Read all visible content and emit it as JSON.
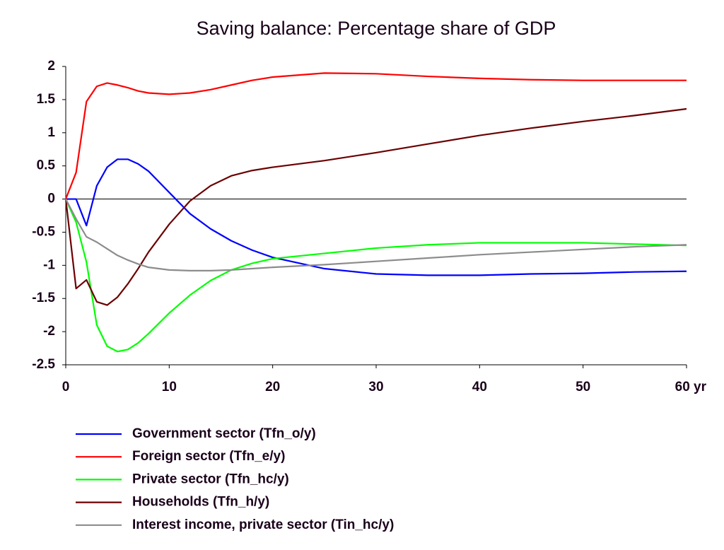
{
  "chart_data": {
    "type": "line",
    "title": "Saving balance: Percentage share of GDP",
    "x": [
      0,
      1,
      2,
      3,
      4,
      5,
      6,
      7,
      8,
      10,
      12,
      14,
      16,
      18,
      20,
      25,
      30,
      35,
      40,
      45,
      50,
      55,
      60
    ],
    "series": [
      {
        "name": "Government sector (Tfn_o/y)",
        "color": "#0000ff",
        "values": [
          0,
          0,
          -0.4,
          0.2,
          0.48,
          0.6,
          0.6,
          0.53,
          0.42,
          0.1,
          -0.22,
          -0.45,
          -0.63,
          -0.77,
          -0.88,
          -1.05,
          -1.13,
          -1.15,
          -1.15,
          -1.13,
          -1.12,
          -1.1,
          -1.09
        ]
      },
      {
        "name": "Foreign sector (Tfn_e/y)",
        "color": "#ff0000",
        "values": [
          0,
          0.4,
          1.47,
          1.7,
          1.75,
          1.72,
          1.68,
          1.63,
          1.6,
          1.58,
          1.6,
          1.65,
          1.72,
          1.79,
          1.84,
          1.9,
          1.89,
          1.85,
          1.82,
          1.8,
          1.79,
          1.79,
          1.79
        ]
      },
      {
        "name": "Private sector (Tfn_hc/y)",
        "color": "#00ff00",
        "values": [
          0,
          -0.35,
          -0.95,
          -1.9,
          -2.22,
          -2.3,
          -2.27,
          -2.17,
          -2.03,
          -1.72,
          -1.45,
          -1.23,
          -1.07,
          -0.97,
          -0.9,
          -0.82,
          -0.74,
          -0.69,
          -0.66,
          -0.66,
          -0.66,
          -0.68,
          -0.7
        ]
      },
      {
        "name": "Households (Tfn_h/y)",
        "color": "#6b0000",
        "values": [
          0,
          -1.35,
          -1.22,
          -1.55,
          -1.6,
          -1.48,
          -1.28,
          -1.05,
          -0.8,
          -0.38,
          -0.03,
          0.2,
          0.35,
          0.43,
          0.48,
          0.58,
          0.7,
          0.83,
          0.96,
          1.07,
          1.17,
          1.26,
          1.36
        ]
      },
      {
        "name": "Interest income, private sector (Tin_hc/y)",
        "color": "#8c8c8c",
        "values": [
          0,
          -0.3,
          -0.57,
          -0.65,
          -0.75,
          -0.85,
          -0.92,
          -0.98,
          -1.03,
          -1.07,
          -1.08,
          -1.08,
          -1.07,
          -1.05,
          -1.03,
          -0.99,
          -0.94,
          -0.89,
          -0.84,
          -0.8,
          -0.76,
          -0.72,
          -0.69
        ]
      }
    ],
    "xlim": [
      0,
      60
    ],
    "xticks": [
      0,
      10,
      20,
      30,
      40,
      50,
      {
        "value": 60,
        "label": "60 yr"
      }
    ],
    "ylim": [
      -2.5,
      2
    ],
    "yticks": [
      2,
      1.5,
      1,
      0.5,
      0,
      -0.5,
      -1,
      -1.5,
      -2,
      -2.5
    ]
  }
}
